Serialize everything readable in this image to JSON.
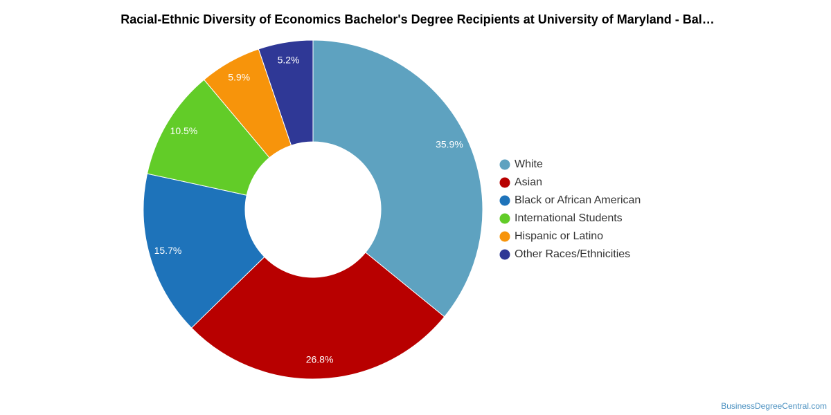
{
  "chart_data": {
    "type": "pie",
    "style": "donut",
    "title": "Racial-Ethnic Diversity of Economics Bachelor's Degree Recipients at University of Maryland - Bal…",
    "categories": [
      "White",
      "Asian",
      "Black or African American",
      "International Students",
      "Hispanic or Latino",
      "Other Races/Ethnicities"
    ],
    "values": [
      35.9,
      26.8,
      15.7,
      10.5,
      5.9,
      5.2
    ],
    "value_labels": [
      "35.9%",
      "26.8%",
      "15.7%",
      "10.5%",
      "5.9%",
      "5.2%"
    ],
    "colors": [
      "#5ea2c0",
      "#b80000",
      "#1e73ba",
      "#62cc28",
      "#f7940b",
      "#2f3896"
    ],
    "legend_position": "right"
  },
  "footer": {
    "credit": "BusinessDegreeCentral.com"
  }
}
